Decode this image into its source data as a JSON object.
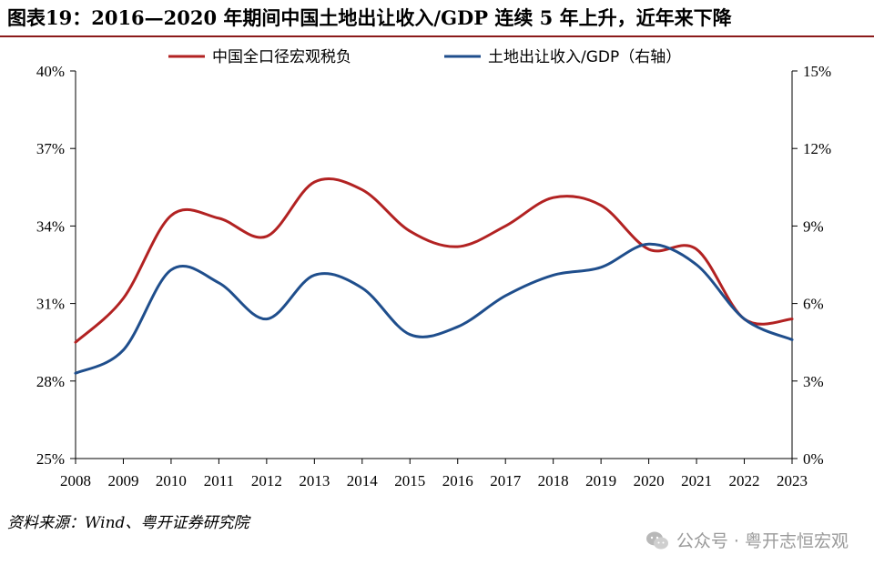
{
  "header": {
    "title": "图表19：2016—2020 年期间中国土地出让收入/GDP 连续 5 年上升，近年来下降"
  },
  "footer": {
    "source": "资料来源：Wind、粤开证券研究院",
    "watermark": "公众号 · 粤开志恒宏观"
  },
  "colors": {
    "red": "#b22222",
    "blue": "#1f4e8c"
  },
  "chart_data": {
    "type": "line",
    "x": [
      "2008",
      "2009",
      "2010",
      "2011",
      "2012",
      "2013",
      "2014",
      "2015",
      "2016",
      "2017",
      "2018",
      "2019",
      "2020",
      "2021",
      "2022",
      "2023"
    ],
    "series": [
      {
        "name": "中国全口径宏观税负",
        "axis": "left",
        "color": "#b22222",
        "values": [
          29.5,
          31.2,
          34.4,
          34.3,
          33.6,
          35.7,
          35.4,
          33.8,
          33.2,
          34.0,
          35.1,
          34.8,
          33.1,
          33.1,
          30.4,
          30.4
        ]
      },
      {
        "name": "土地出让收入/GDP（右轴）",
        "axis": "right",
        "color": "#1f4e8c",
        "values": [
          3.3,
          4.2,
          7.3,
          6.8,
          5.4,
          7.1,
          6.6,
          4.8,
          5.1,
          6.3,
          7.1,
          7.4,
          8.3,
          7.5,
          5.4,
          4.6
        ]
      }
    ],
    "y_left": {
      "min": 25,
      "max": 40,
      "ticks": [
        "25%",
        "28%",
        "31%",
        "34%",
        "37%",
        "40%"
      ],
      "tick_values": [
        25,
        28,
        31,
        34,
        37,
        40
      ]
    },
    "y_right": {
      "min": 0,
      "max": 15,
      "ticks": [
        "0%",
        "3%",
        "6%",
        "9%",
        "12%",
        "15%"
      ],
      "tick_values": [
        0,
        3,
        6,
        9,
        12,
        15
      ]
    },
    "legend_position": "top"
  }
}
